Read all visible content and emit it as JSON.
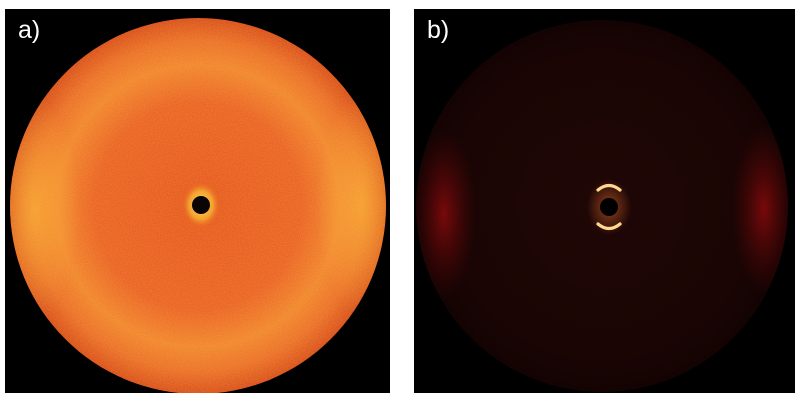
{
  "panels": [
    {
      "label": "a)"
    },
    {
      "label": "b)"
    }
  ],
  "colors": {
    "background": "#000000",
    "panel_a_base": "#e8561a",
    "panel_a_ring": "#f6a22a",
    "panel_b_base": "#1a0503",
    "panel_b_arc": "#ff6a20",
    "panel_b_side": "#6a0808"
  }
}
